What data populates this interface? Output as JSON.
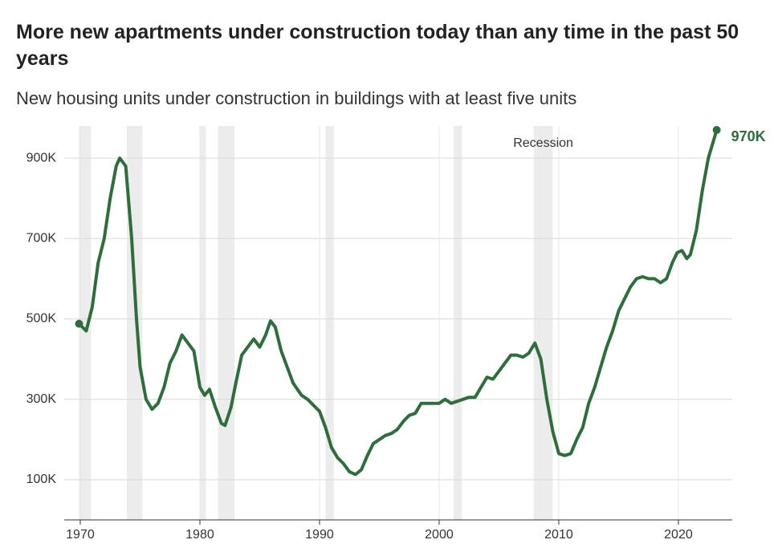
{
  "chart_data": {
    "type": "line",
    "title": "More new apartments under construction today than any time in the past 50 years",
    "subtitle": "New housing units under construction in buildings with at least five units",
    "x": [
      1969.9,
      1970.5,
      1971,
      1971.5,
      1972,
      1972.5,
      1973,
      1973.3,
      1973.8,
      1974.3,
      1974.7,
      1975,
      1975.5,
      1976,
      1976.5,
      1977,
      1977.5,
      1978,
      1978.5,
      1979,
      1979.5,
      1980,
      1980.4,
      1980.8,
      1981.3,
      1981.8,
      1982.1,
      1982.6,
      1983,
      1983.5,
      1984,
      1984.5,
      1985,
      1985.5,
      1985.9,
      1986.3,
      1986.8,
      1987.3,
      1987.8,
      1988.5,
      1989,
      1989.5,
      1990,
      1990.5,
      1991,
      1991.5,
      1992,
      1992.5,
      1993,
      1993.5,
      1994,
      1994.5,
      1995,
      1995.5,
      1996,
      1996.5,
      1997,
      1997.5,
      1998,
      1998.5,
      1999,
      1999.5,
      2000,
      2000.5,
      2001,
      2001.5,
      2002,
      2002.5,
      2003,
      2003.5,
      2004,
      2004.5,
      2005,
      2005.5,
      2006,
      2006.5,
      2007,
      2007.5,
      2008,
      2008.5,
      2009,
      2009.5,
      2010,
      2010.5,
      2011,
      2011.5,
      2012,
      2012.5,
      2013,
      2013.5,
      2014,
      2014.5,
      2015,
      2015.5,
      2016,
      2016.5,
      2017,
      2017.5,
      2018,
      2018.5,
      2019,
      2019.5,
      2019.9,
      2020.3,
      2020.7,
      2021,
      2021.5,
      2022,
      2022.5,
      2023,
      2023.2
    ],
    "series": [
      {
        "color": "#2d6e3b",
        "values": [
          488,
          470,
          530,
          640,
          700,
          800,
          880,
          900,
          880,
          700,
          500,
          380,
          300,
          275,
          290,
          330,
          390,
          420,
          460,
          440,
          420,
          330,
          310,
          325,
          280,
          240,
          235,
          280,
          340,
          410,
          430,
          450,
          430,
          460,
          495,
          480,
          420,
          380,
          340,
          310,
          300,
          285,
          270,
          230,
          180,
          155,
          140,
          120,
          113,
          125,
          160,
          190,
          200,
          210,
          215,
          225,
          245,
          260,
          265,
          290,
          290,
          290,
          290,
          300,
          290,
          295,
          300,
          305,
          305,
          330,
          355,
          350,
          370,
          390,
          410,
          410,
          405,
          415,
          440,
          400,
          300,
          220,
          165,
          160,
          165,
          200,
          230,
          290,
          330,
          380,
          430,
          470,
          520,
          550,
          580,
          600,
          605,
          600,
          600,
          590,
          600,
          640,
          665,
          670,
          650,
          660,
          720,
          820,
          900,
          950,
          970
        ]
      }
    ],
    "end_label": "970K",
    "recessions": [
      [
        1969.9,
        1970.9
      ],
      [
        1973.9,
        1975.2
      ],
      [
        1980.0,
        1980.5
      ],
      [
        1981.5,
        1982.9
      ],
      [
        1990.5,
        1991.2
      ],
      [
        2001.2,
        2001.9
      ],
      [
        2007.9,
        2009.5
      ]
    ],
    "recession_label": "Recession",
    "xlim": [
      1968.66,
      2024.5
    ],
    "xticks": [
      1970,
      1980,
      1990,
      2000,
      2010,
      2020
    ],
    "ylim": [
      0,
      980
    ],
    "yticks": [
      {
        "value": 100,
        "label": "100K"
      },
      {
        "value": 300,
        "label": "300K"
      },
      {
        "value": 500,
        "label": "500K"
      },
      {
        "value": 700,
        "label": "700K"
      },
      {
        "value": 900,
        "label": "900K"
      }
    ],
    "grid": true
  }
}
